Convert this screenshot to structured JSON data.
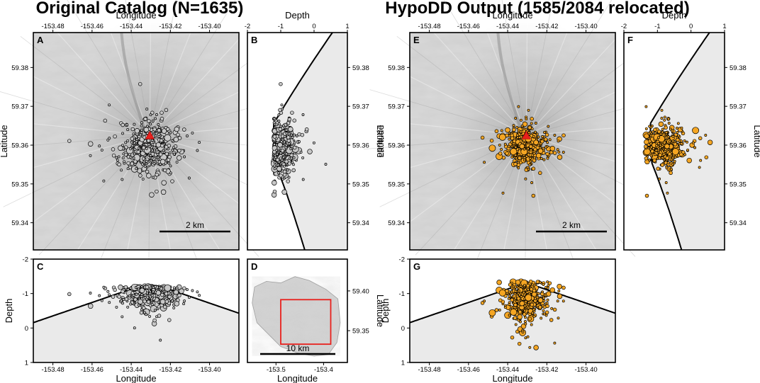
{
  "chart_data": {
    "type": "scatter",
    "figure_titles": [
      "Original Catalog (N=1635)",
      "HypoDD Output (1585/2084 relocated)"
    ],
    "colors": {
      "original_event": "#c8c8c8",
      "relocated_event": "#f5a623",
      "vent": "#e8201c",
      "inset_box": "#e8201c",
      "topo_fill": "#eaeaea"
    },
    "axes": {
      "longitude_label": "Longitude",
      "latitude_label": "Latitude",
      "depth_label": "Depth",
      "lon_range": [
        -153.49,
        -153.385
      ],
      "lat_range": [
        59.333,
        59.389
      ],
      "depth_range": [
        -2,
        1
      ],
      "lon_ticks": [
        "-153.48",
        "-153.46",
        "-153.44",
        "-153.42",
        "-153.40"
      ],
      "lat_ticks": [
        "59.34",
        "59.35",
        "59.36",
        "59.37",
        "59.38"
      ],
      "depth_ticks": [
        "-2",
        "-1",
        "0",
        "1"
      ],
      "inset_lon_ticks": [
        "-153.5",
        "-153.4"
      ],
      "inset_lat_ticks": [
        "59.35",
        "59.40"
      ]
    },
    "panels": [
      {
        "id": "A",
        "view": "map",
        "catalog": "original"
      },
      {
        "id": "B",
        "view": "depth-latitude",
        "catalog": "original"
      },
      {
        "id": "C",
        "view": "longitude-depth",
        "catalog": "original"
      },
      {
        "id": "D",
        "view": "inset-location-map"
      },
      {
        "id": "E",
        "view": "map",
        "catalog": "hypodd"
      },
      {
        "id": "F",
        "view": "depth-latitude",
        "catalog": "hypodd"
      },
      {
        "id": "G",
        "view": "longitude-depth",
        "catalog": "hypodd"
      }
    ],
    "vent": {
      "lon": -153.4305,
      "lat": 59.3625
    },
    "scale_bars": {
      "map": "2 km",
      "inset": "10 km"
    },
    "inset_box": {
      "lon": [
        -153.49,
        -153.385
      ],
      "lat": [
        59.333,
        59.389
      ]
    },
    "original_cluster": {
      "count": 1635,
      "lon_center": -153.431,
      "lon_sd": 0.0065,
      "lat_center": 59.3595,
      "lat_sd": 0.0028,
      "depth_center": -0.95,
      "depth_sd": 0.18,
      "depth_min": -1.2
    },
    "hypodd_cluster": {
      "relocated": 1585,
      "total": 2084,
      "lon_center": -153.4305,
      "lon_sd": 0.0045,
      "lat_center": 59.3598,
      "lat_sd": 0.0022,
      "depth_center": -0.85,
      "depth_sd": 0.25
    }
  }
}
